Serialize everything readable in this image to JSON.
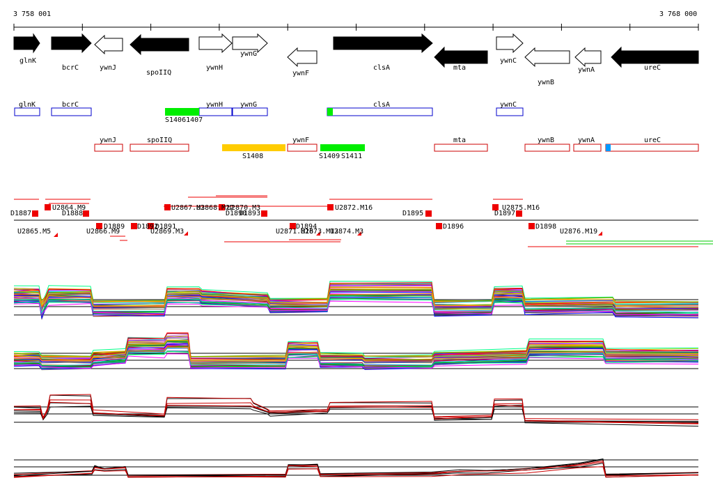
{
  "ruler": {
    "start_label": "3 758 001",
    "end_label": "3 768 000",
    "start": 3758001,
    "end": 3768000
  },
  "genes": [
    {
      "name": "glnK",
      "strand": "+",
      "filled": true
    },
    {
      "name": "bcrC",
      "strand": "+",
      "filled": true
    },
    {
      "name": "ywnJ",
      "strand": "-",
      "filled": false
    },
    {
      "name": "spoIIQ",
      "strand": "-",
      "filled": true
    },
    {
      "name": "ywnH",
      "strand": "+",
      "filled": false
    },
    {
      "name": "ywnG",
      "strand": "+",
      "filled": false
    },
    {
      "name": "ywnF",
      "strand": "-",
      "filled": false
    },
    {
      "name": "clsA",
      "strand": "+",
      "filled": true
    },
    {
      "name": "mta",
      "strand": "-",
      "filled": true
    },
    {
      "name": "ywnC",
      "strand": "+",
      "filled": false
    },
    {
      "name": "ywnB",
      "strand": "-",
      "filled": false
    },
    {
      "name": "ywnA",
      "strand": "-",
      "filled": false
    },
    {
      "name": "ureC",
      "strand": "-",
      "filled": true
    }
  ],
  "features_plus": [
    {
      "name": "glnK"
    },
    {
      "name": "bcrC"
    },
    {
      "name": "ywnH"
    },
    {
      "name": "ywnG"
    },
    {
      "name": "clsA"
    },
    {
      "name": "ywnC"
    }
  ],
  "features_minus": [
    {
      "name": "ywnJ"
    },
    {
      "name": "spoIIQ"
    },
    {
      "name": "ywnF"
    },
    {
      "name": "mta"
    },
    {
      "name": "ywnB"
    },
    {
      "name": "ywnA"
    },
    {
      "name": "ureC"
    }
  ],
  "segments": [
    {
      "name": "S14061407",
      "color": "#00ee00"
    },
    {
      "name": "S1408",
      "color": "#ffcc00"
    },
    {
      "name": "S1409",
      "color": "#00ee00"
    },
    {
      "name": "S1411",
      "color": "#00ee00"
    }
  ],
  "markers_upper": [
    "D1887",
    "U2864.M9",
    "D1888",
    "U2867.M3",
    "U2868.M22",
    "D1890",
    "U2870.M3",
    "D1893",
    "U2872.M16",
    "D1895",
    "D1897",
    "U2875.M16"
  ],
  "markers_lower": [
    "U2865.M5",
    "U2866.M9",
    "D1889",
    "D1891",
    "D1892",
    "U2869.M3",
    "U2871.M16",
    "D1894",
    "U2873.M13",
    "U2874.M3",
    "D1896",
    "D1898",
    "U2876.M19"
  ],
  "colors": {
    "plus_box": "#0000cc",
    "minus_box": "#cc0000",
    "marker": "#ee0000",
    "ureC_tss": "#0099ff"
  }
}
